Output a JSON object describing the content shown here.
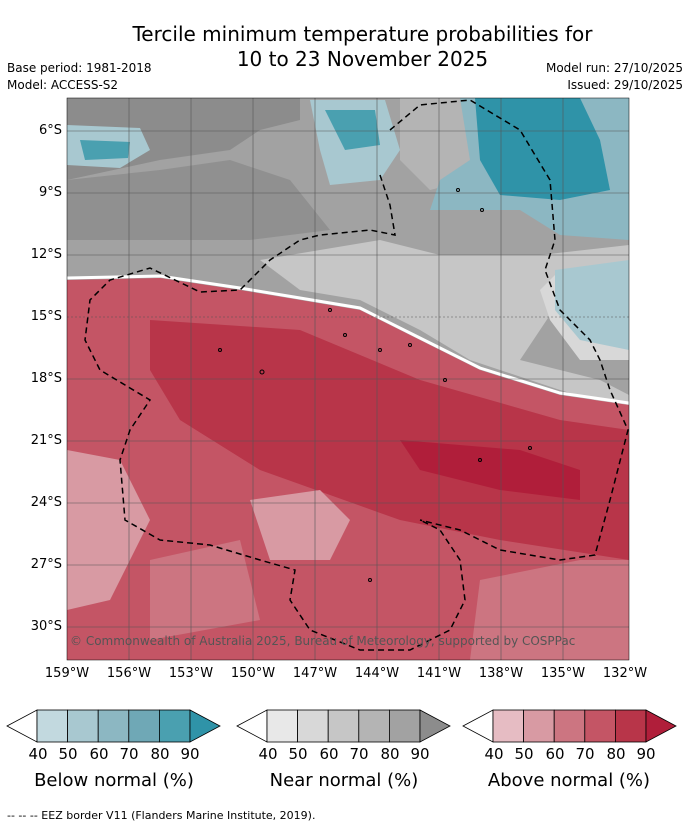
{
  "title_line1": "Tercile minimum temperature probabilities for",
  "title_line2": "10 to 23 November 2025",
  "base_period": "Base period: 1981-2018",
  "model": "Model: ACCESS-S2",
  "model_run": "Model run: 27/10/2025",
  "issued": "Issued: 29/10/2025",
  "copyright": "© Commonwealth of Australia 2025, Bureau of Meteorology, supported by COSPPac",
  "lat_labels": [
    "6°S",
    "9°S",
    "12°S",
    "15°S",
    "18°S",
    "21°S",
    "24°S",
    "27°S",
    "30°S"
  ],
  "lon_labels": [
    "159°W",
    "156°W",
    "153°W",
    "150°W",
    "147°W",
    "144°W",
    "141°W",
    "138°W",
    "135°W",
    "132°W"
  ],
  "legends": {
    "below": {
      "title": "Below normal (%)",
      "ticks": [
        "40",
        "50",
        "60",
        "70",
        "80",
        "90"
      ],
      "colors": [
        "#c2d9df",
        "#a8c8d0",
        "#8cb7c2",
        "#6fa8b6",
        "#4aa0b0",
        "#2f93a8"
      ]
    },
    "near": {
      "title": "Near normal (%)",
      "ticks": [
        "40",
        "50",
        "60",
        "70",
        "80",
        "90"
      ],
      "colors": [
        "#e8e8e8",
        "#d8d8d8",
        "#c6c6c6",
        "#b4b4b4",
        "#a2a2a2",
        "#8c8c8c"
      ]
    },
    "above": {
      "title": "Above normal (%)",
      "ticks": [
        "40",
        "50",
        "60",
        "70",
        "80",
        "90"
      ],
      "colors": [
        "#e6bcc3",
        "#d89aa3",
        "#cc7581",
        "#c45565",
        "#b83549",
        "#b01e3a"
      ]
    }
  },
  "footnote": "-- -- -- EEZ border V11 (Flanders Marine Institute, 2019)."
}
